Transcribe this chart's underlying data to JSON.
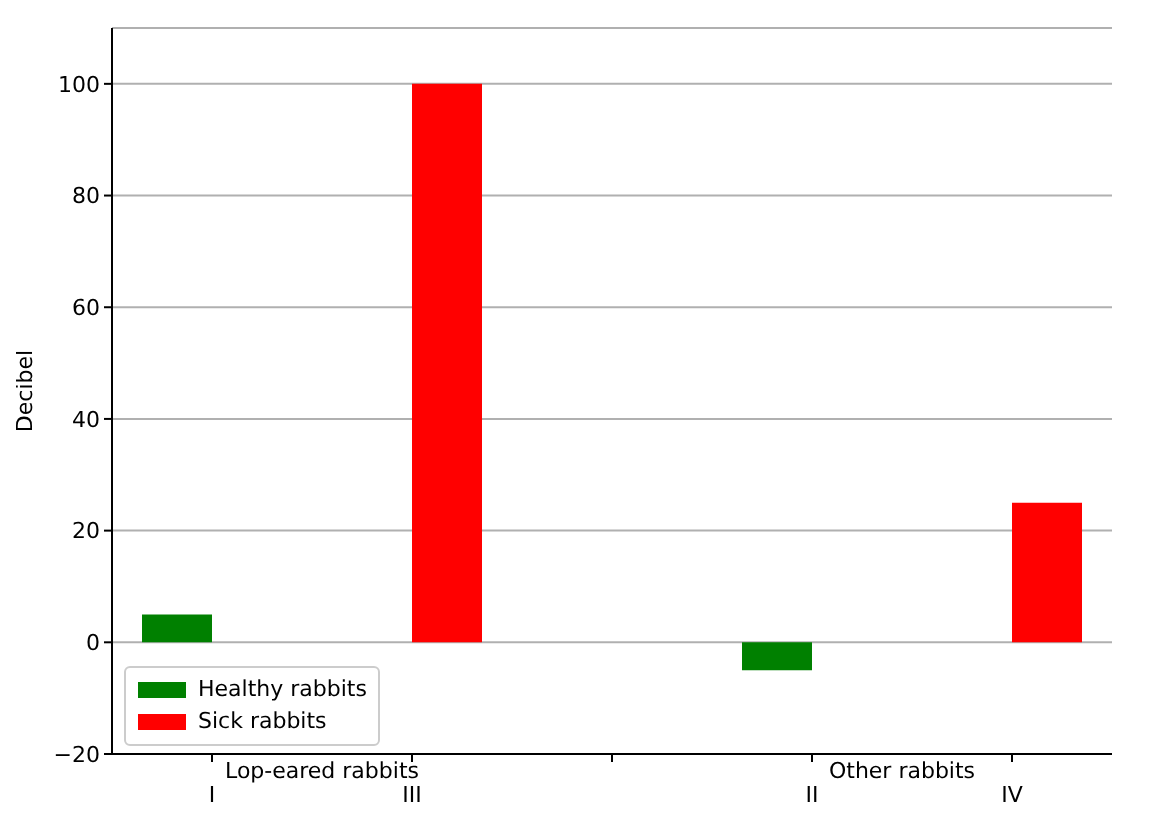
{
  "chart_data": {
    "type": "bar",
    "ylabel": "Decibel",
    "categories": [
      "I",
      "III",
      null,
      "II",
      "IV"
    ],
    "series": [
      {
        "name": "Healthy rabbits",
        "color": "#008000",
        "values": [
          5,
          null,
          null,
          -5,
          null
        ]
      },
      {
        "name": "Sick rabbits",
        "color": "#ff0000",
        "values": [
          null,
          100,
          null,
          null,
          25
        ]
      }
    ],
    "ylim": [
      -20,
      110
    ],
    "yticks": [
      -20,
      0,
      20,
      40,
      60,
      80,
      100
    ],
    "annotations": [
      "Lop-eared rabbits",
      "Other rabbits"
    ],
    "grid": "y",
    "legend": "bottom left"
  }
}
